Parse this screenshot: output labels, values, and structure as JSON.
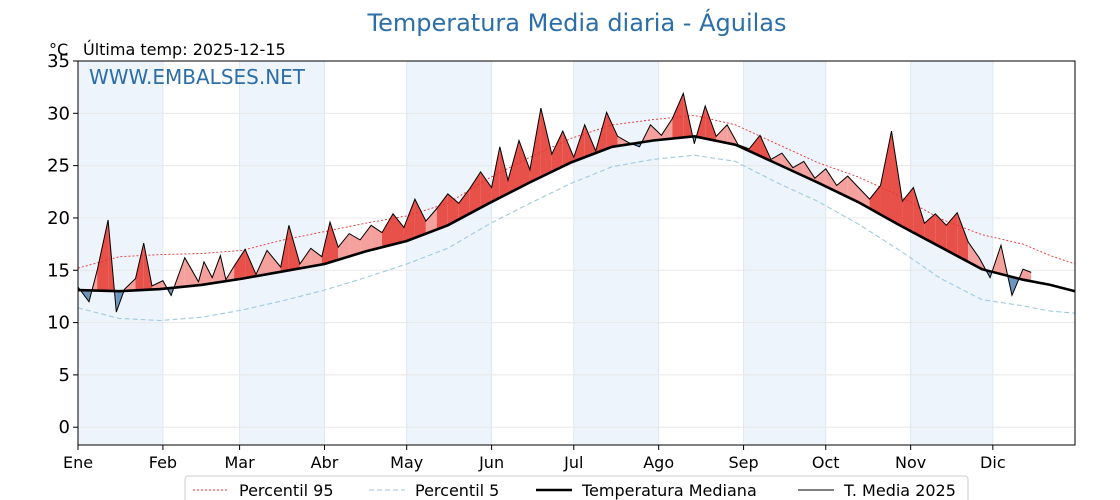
{
  "header": {
    "title": "Temperatura Media diaria - Águilas",
    "unit": "°C",
    "last_temp": "Última temp: 2025-12-15",
    "watermark": "WWW.EMBALSES.NET"
  },
  "colors": {
    "title": "#2c6ea8",
    "p95": "#e8322a",
    "p5": "#9ecae1",
    "median": "#000000",
    "current": "#000000",
    "above_fill": "#f4a09c",
    "above_fill_strong": "#e8504a",
    "below_fill": "#6b95bd",
    "month_shade": "#eef4fb"
  },
  "chart_data": {
    "type": "line",
    "title": "Temperatura Media diaria - Águilas",
    "xlabel": "",
    "ylabel": "°C",
    "ylim": [
      -1.7,
      35
    ],
    "xlim": [
      1,
      365
    ],
    "yticks": [
      0,
      5,
      10,
      15,
      20,
      25,
      30,
      35
    ],
    "months": [
      {
        "label": "Ene",
        "day": 1
      },
      {
        "label": "Feb",
        "day": 32
      },
      {
        "label": "Mar",
        "day": 60
      },
      {
        "label": "Abr",
        "day": 91
      },
      {
        "label": "May",
        "day": 121
      },
      {
        "label": "Jun",
        "day": 152
      },
      {
        "label": "Jul",
        "day": 182
      },
      {
        "label": "Ago",
        "day": 213
      },
      {
        "label": "Sep",
        "day": 244
      },
      {
        "label": "Oct",
        "day": 274
      },
      {
        "label": "Nov",
        "day": 305
      },
      {
        "label": "Dic",
        "day": 335
      }
    ],
    "shaded_months": [
      1,
      3,
      5,
      7,
      9,
      11
    ],
    "series": [
      {
        "name": "Percentil 95",
        "style": "dotted",
        "x": [
          1,
          16,
          31,
          46,
          61,
          76,
          91,
          106,
          121,
          136,
          151,
          166,
          181,
          196,
          211,
          226,
          241,
          256,
          271,
          286,
          301,
          316,
          331,
          346,
          356,
          365
        ],
        "values": [
          15.2,
          16.3,
          16.5,
          16.6,
          16.9,
          17.9,
          18.7,
          19.5,
          20.2,
          21.4,
          23.8,
          25.8,
          27.6,
          28.9,
          29.4,
          29.8,
          28.9,
          27.1,
          25.3,
          23.9,
          22.1,
          19.9,
          18.4,
          17.5,
          16.4,
          15.6
        ]
      },
      {
        "name": "Percentil 5",
        "style": "dashed",
        "x": [
          1,
          16,
          31,
          46,
          61,
          76,
          91,
          106,
          121,
          136,
          151,
          166,
          181,
          196,
          211,
          226,
          241,
          256,
          271,
          286,
          301,
          316,
          331,
          346,
          356,
          365
        ],
        "values": [
          11.4,
          10.4,
          10.2,
          10.5,
          11.2,
          12.1,
          13.1,
          14.3,
          15.6,
          17.1,
          19.4,
          21.4,
          23.3,
          24.9,
          25.6,
          26.0,
          25.4,
          23.4,
          21.6,
          19.4,
          16.9,
          14.2,
          12.2,
          11.6,
          11.1,
          10.9
        ]
      },
      {
        "name": "Temperatura Mediana",
        "style": "solid-thick",
        "x": [
          1,
          16,
          31,
          46,
          61,
          76,
          91,
          106,
          121,
          136,
          151,
          166,
          181,
          196,
          211,
          226,
          241,
          256,
          271,
          286,
          301,
          316,
          331,
          346,
          356,
          365
        ],
        "values": [
          13.1,
          13.0,
          13.2,
          13.6,
          14.2,
          14.9,
          15.6,
          16.8,
          17.8,
          19.3,
          21.4,
          23.4,
          25.3,
          26.8,
          27.4,
          27.8,
          27.0,
          25.2,
          23.4,
          21.5,
          19.3,
          17.2,
          15.1,
          14.1,
          13.6,
          13.0
        ]
      },
      {
        "name": "T. Media 2025",
        "style": "solid",
        "x": [
          1,
          5,
          8,
          12,
          15,
          18,
          22,
          25,
          28,
          32,
          35,
          40,
          45,
          47,
          50,
          53,
          55,
          58,
          62,
          66,
          70,
          75,
          78,
          82,
          86,
          90,
          93,
          96,
          100,
          104,
          108,
          112,
          116,
          120,
          124,
          128,
          132,
          136,
          140,
          144,
          148,
          152,
          155,
          158,
          162,
          166,
          170,
          174,
          178,
          182,
          186,
          190,
          194,
          198,
          202,
          206,
          210,
          214,
          218,
          222,
          226,
          230,
          234,
          238,
          242,
          246,
          250,
          254,
          258,
          262,
          266,
          270,
          274,
          278,
          282,
          286,
          290,
          294,
          298,
          302,
          306,
          310,
          314,
          318,
          322,
          326,
          330,
          334,
          338,
          342,
          346,
          349
        ],
        "values": [
          13.4,
          12.0,
          15.0,
          19.8,
          11.0,
          13.2,
          14.2,
          17.6,
          13.5,
          14.0,
          12.6,
          16.2,
          13.9,
          15.8,
          14.3,
          16.4,
          14.1,
          15.4,
          17.0,
          14.6,
          16.9,
          15.3,
          19.3,
          15.6,
          17.1,
          16.3,
          19.6,
          17.2,
          18.5,
          17.9,
          19.3,
          18.6,
          20.4,
          19.1,
          21.8,
          19.7,
          20.9,
          22.3,
          21.4,
          22.8,
          24.4,
          22.9,
          26.8,
          23.6,
          27.4,
          24.6,
          30.5,
          26.1,
          28.3,
          25.8,
          28.9,
          26.4,
          30.1,
          27.8,
          27.2,
          26.8,
          28.9,
          27.9,
          29.5,
          31.9,
          27.1,
          30.7,
          27.8,
          28.9,
          27.0,
          26.6,
          27.9,
          25.6,
          26.2,
          24.8,
          25.4,
          23.8,
          24.7,
          23.1,
          24.0,
          22.9,
          21.8,
          23.1,
          28.3,
          21.6,
          22.9,
          19.5,
          20.4,
          19.3,
          20.5,
          17.7,
          16.2,
          14.3,
          17.4,
          12.6,
          15.1,
          14.8
        ]
      }
    ],
    "legend": {
      "position": "bottom-center",
      "entries": [
        "Percentil 95",
        "Percentil 5",
        "Temperatura Mediana",
        "T. Media 2025"
      ]
    }
  }
}
